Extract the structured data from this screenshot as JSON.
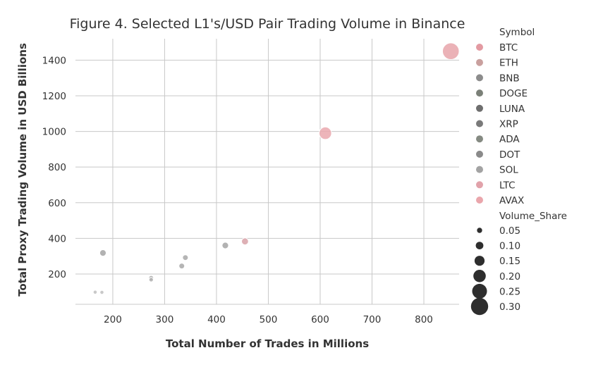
{
  "chart_data": {
    "type": "scatter",
    "title": "Figure 4. Selected L1's/USD Pair Trading Volume in Binance",
    "xlabel": "Total Number of Trades in Millions",
    "ylabel": "Total Proxy Trading Volume in USD Billions",
    "xlim": [
      128,
      868
    ],
    "ylim": [
      30,
      1520
    ],
    "xticks": [
      200,
      300,
      400,
      500,
      600,
      700,
      800
    ],
    "yticks": [
      200,
      400,
      600,
      800,
      1000,
      1200,
      1400
    ],
    "grid": true,
    "legend_placement": "right",
    "hue_title": "Symbol",
    "size_title": "Volume_Share",
    "points": [
      {
        "symbol": "BTC",
        "x": 852,
        "y": 1450,
        "size": 0.32,
        "color": "#e8a4aa"
      },
      {
        "symbol": "ETH",
        "x": 610,
        "y": 990,
        "size": 0.22,
        "color": "#eaa8ae"
      },
      {
        "symbol": "BNB",
        "x": 455,
        "y": 383,
        "size": 0.09,
        "color": "#d8a2a8"
      },
      {
        "symbol": "DOGE",
        "x": 417,
        "y": 360,
        "size": 0.08,
        "color": "#a5a5a5"
      },
      {
        "symbol": "LUNA",
        "x": 181,
        "y": 318,
        "size": 0.08,
        "color": "#a5a5a5"
      },
      {
        "symbol": "XRP",
        "x": 340,
        "y": 292,
        "size": 0.06,
        "color": "#a8a8a8"
      },
      {
        "symbol": "ADA",
        "x": 333,
        "y": 245,
        "size": 0.06,
        "color": "#a8a8a8"
      },
      {
        "symbol": "DOT",
        "x": 274,
        "y": 178,
        "size": 0.04,
        "color": "#aaaaaa"
      },
      {
        "symbol": "SOL",
        "x": 274,
        "y": 168,
        "size": 0.03,
        "color": "#b0b0b0"
      },
      {
        "symbol": "LTC",
        "x": 166,
        "y": 98,
        "size": 0.02,
        "color": "#c0c0c0"
      },
      {
        "symbol": "AVAX",
        "x": 179,
        "y": 97,
        "size": 0.02,
        "color": "#c0c0c0"
      }
    ],
    "legend_symbols": [
      {
        "label": "BTC",
        "color": "#e39aa2"
      },
      {
        "label": "ETH",
        "color": "#c9a09e"
      },
      {
        "label": "BNB",
        "color": "#8c8c8c"
      },
      {
        "label": "DOGE",
        "color": "#7b8078"
      },
      {
        "label": "LUNA",
        "color": "#6e6e6e"
      },
      {
        "label": "XRP",
        "color": "#7a7a7a"
      },
      {
        "label": "ADA",
        "color": "#858a82"
      },
      {
        "label": "DOT",
        "color": "#8a8a8a"
      },
      {
        "label": "SOL",
        "color": "#a3a3a3"
      },
      {
        "label": "LTC",
        "color": "#e1a2aa"
      },
      {
        "label": "AVAX",
        "color": "#eaa6ac"
      }
    ],
    "legend_sizes": [
      {
        "label": "0.05",
        "value": 0.05
      },
      {
        "label": "0.10",
        "value": 0.1
      },
      {
        "label": "0.15",
        "value": 0.15
      },
      {
        "label": "0.20",
        "value": 0.2
      },
      {
        "label": "0.25",
        "value": 0.25
      },
      {
        "label": "0.30",
        "value": 0.3
      }
    ]
  }
}
